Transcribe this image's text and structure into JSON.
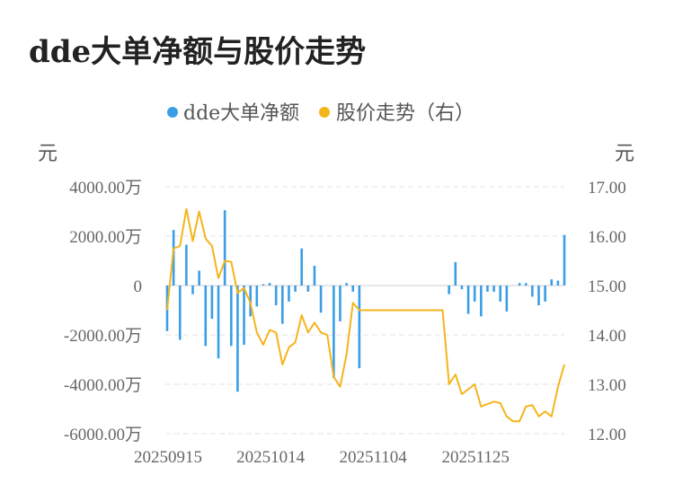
{
  "title": "dde大单净额与股价走势",
  "colors": {
    "bar": "#3a9ee6",
    "line": "#f4b51b",
    "grid": "#e3e3e3",
    "text": "#666666"
  },
  "chart_data": {
    "type": "bar+line",
    "legend": [
      {
        "name": "dde大单净额",
        "color": "#3a9ee6"
      },
      {
        "name": "股价走势（右）",
        "color": "#f4b51b"
      }
    ],
    "legend_position": "top-center",
    "left_unit": "元",
    "right_unit": "元",
    "y_left": {
      "ticks": [
        4000,
        2000,
        0,
        -2000,
        -4000,
        -6000
      ],
      "tick_labels": [
        "4000.00万",
        "2000.00万",
        "0",
        "-2000.00万",
        "-4000.00万",
        "-6000.00万"
      ],
      "ylim": [
        -6000,
        4000
      ]
    },
    "y_right": {
      "ticks": [
        17,
        16,
        15,
        14,
        13,
        12
      ],
      "tick_labels": [
        "17.00",
        "16.00",
        "15.00",
        "14.00",
        "13.00",
        "12.00"
      ],
      "ylim": [
        12,
        17
      ]
    },
    "x_tick_labels": [
      {
        "label": "20250915",
        "index": 0
      },
      {
        "label": "20251014",
        "index": 16
      },
      {
        "label": "20251104",
        "index": 32
      },
      {
        "label": "20251125",
        "index": 48
      }
    ],
    "grid": true,
    "series_bar": {
      "name": "dde大单净额",
      "values": [
        -1850,
        2250,
        -2200,
        1650,
        -350,
        600,
        -2450,
        -1350,
        -2950,
        3050,
        -2450,
        -4300,
        -2400,
        -1250,
        -850,
        50,
        100,
        -800,
        -1550,
        -650,
        -250,
        1500,
        -250,
        800,
        -1100,
        0,
        -3750,
        -1450,
        100,
        -250,
        -3350,
        0,
        0,
        0,
        0,
        0,
        0,
        0,
        0,
        0,
        0,
        0,
        0,
        0,
        -350,
        950,
        -150,
        -1150,
        -650,
        -1250,
        -250,
        -250,
        -650,
        -1050,
        0,
        100,
        100,
        -450,
        -800,
        -650,
        250,
        200,
        2050
      ]
    },
    "series_line": {
      "name": "股价走势（右）",
      "values": [
        14.5,
        15.75,
        15.8,
        16.55,
        15.9,
        16.5,
        15.95,
        15.8,
        15.15,
        15.5,
        15.48,
        14.85,
        14.95,
        14.65,
        14.05,
        13.8,
        14.1,
        14.05,
        13.4,
        13.75,
        13.85,
        14.4,
        14.05,
        14.25,
        14.05,
        14.0,
        13.15,
        12.95,
        13.6,
        14.65,
        14.5,
        14.5,
        14.5,
        14.5,
        14.5,
        14.5,
        14.5,
        14.5,
        14.5,
        14.5,
        14.5,
        14.5,
        14.5,
        14.5,
        13.0,
        13.2,
        12.8,
        12.9,
        13.0,
        12.55,
        12.6,
        12.65,
        12.62,
        12.35,
        12.25,
        12.25,
        12.55,
        12.58,
        12.35,
        12.45,
        12.35,
        12.95,
        13.4
      ]
    }
  }
}
